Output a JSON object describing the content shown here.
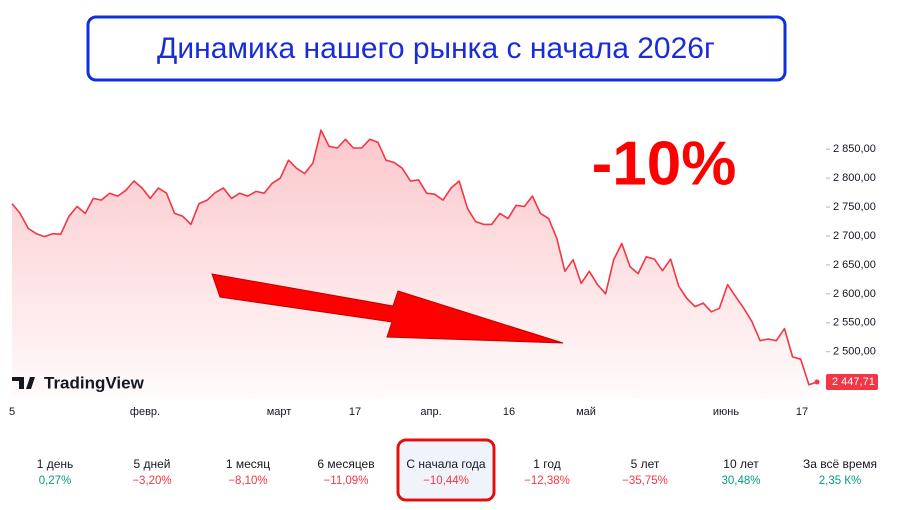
{
  "chart_data": {
    "type": "area",
    "title": "Динамика нашего рынка с начала 2026г",
    "annotation": "-10%",
    "brand": "TradingView",
    "color": "#f23645",
    "values": [
      2756,
      2739,
      2713,
      2704,
      2699,
      2704,
      2703,
      2734,
      2751,
      2739,
      2765,
      2762,
      2774,
      2769,
      2779,
      2795,
      2783,
      2765,
      2783,
      2774,
      2739,
      2734,
      2720,
      2756,
      2762,
      2775,
      2783,
      2765,
      2774,
      2769,
      2777,
      2774,
      2791,
      2800,
      2831,
      2817,
      2808,
      2826,
      2883,
      2855,
      2852,
      2867,
      2852,
      2852,
      2867,
      2862,
      2831,
      2827,
      2817,
      2795,
      2797,
      2774,
      2772,
      2762,
      2783,
      2795,
      2748,
      2725,
      2720,
      2720,
      2739,
      2730,
      2753,
      2751,
      2769,
      2739,
      2730,
      2696,
      2639,
      2659,
      2618,
      2639,
      2616,
      2600,
      2659,
      2687,
      2647,
      2635,
      2664,
      2660,
      2640,
      2660,
      2613,
      2592,
      2578,
      2584,
      2569,
      2575,
      2616,
      2595,
      2575,
      2552,
      2519,
      2522,
      2519,
      2540,
      2491,
      2487,
      2443,
      2447.71
    ],
    "xlabels": [
      "5",
      "февр.",
      "март",
      "17",
      "апр.",
      "16",
      "май",
      "июнь",
      "17"
    ],
    "ylim": [
      2420,
      2935
    ],
    "yticks": [
      {
        "value": 2500,
        "label": "2 500,00"
      },
      {
        "value": 2550,
        "label": "2 550,00"
      },
      {
        "value": 2600,
        "label": "2 600,00"
      },
      {
        "value": 2650,
        "label": "2 650,00"
      },
      {
        "value": 2700,
        "label": "2 700,00"
      },
      {
        "value": 2750,
        "label": "2 750,00"
      },
      {
        "value": 2800,
        "label": "2 800,00"
      },
      {
        "value": 2850,
        "label": "2 850,00"
      }
    ],
    "last_price": {
      "value": 2447.71,
      "label": "2 447,71"
    }
  },
  "periods": [
    {
      "label": "1 день",
      "change": "0,27%",
      "trend": "up"
    },
    {
      "label": "5 дней",
      "change": "−3,20%",
      "trend": "down"
    },
    {
      "label": "1 месяц",
      "change": "−8,10%",
      "trend": "down"
    },
    {
      "label": "6 месяцев",
      "change": "−11,09%",
      "trend": "down"
    },
    {
      "label": "С начала года",
      "change": "−10,44%",
      "trend": "down",
      "selected": true
    },
    {
      "label": "1 год",
      "change": "−12,38%",
      "trend": "down"
    },
    {
      "label": "5 лет",
      "change": "−35,75%",
      "trend": "down"
    },
    {
      "label": "10 лет",
      "change": "30,48%",
      "trend": "up"
    },
    {
      "label": "За всё время",
      "change": "2,35 К%",
      "trend": "up"
    }
  ]
}
